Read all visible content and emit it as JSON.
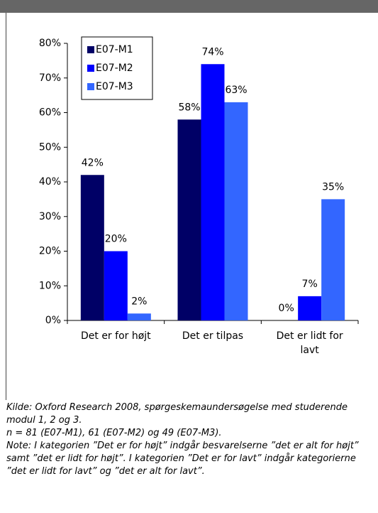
{
  "chart_data": {
    "type": "bar",
    "categories": [
      "Det er for højt",
      "Det er tilpas",
      "Det er lidt for lavt"
    ],
    "series": [
      {
        "name": "E07-M1",
        "color": "#000066",
        "values": [
          42,
          58,
          0
        ],
        "value_labels": [
          "42%",
          "58%",
          "0%"
        ]
      },
      {
        "name": "E07-M2",
        "color": "#0000ff",
        "values": [
          20,
          74,
          7
        ],
        "value_labels": [
          "20%",
          "74%",
          "7%"
        ]
      },
      {
        "name": "E07-M3",
        "color": "#3366ff",
        "values": [
          2,
          63,
          35
        ],
        "value_labels": [
          "2%",
          "63%",
          "35%"
        ]
      }
    ],
    "ylim": [
      0,
      80
    ],
    "yticks": [
      {
        "value": 0,
        "label": "0%"
      },
      {
        "value": 10,
        "label": "10%"
      },
      {
        "value": 20,
        "label": "20%"
      },
      {
        "value": 30,
        "label": "30%"
      },
      {
        "value": 40,
        "label": "40%"
      },
      {
        "value": 50,
        "label": "50%"
      },
      {
        "value": 60,
        "label": "60%"
      },
      {
        "value": 70,
        "label": "70%"
      },
      {
        "value": 80,
        "label": "80%"
      }
    ],
    "legend": "upper left",
    "notes": [
      "Kilde: Oxford Research 2008, spørgeskemaundersøgelse med studerende modul 1, 2 og 3.",
      "n = 81 (E07-M1), 61 (E07-M2) og 49 (E07-M3).",
      "Note: I kategorien ”Det er for højt” indgår besvarelserne ”det er alt for højt” samt ”det er lidt for højt”. I kategorien ”Det er for lavt” indgår kategorierne ”det er lidt for lavt” og ”det er alt for lavt”."
    ]
  }
}
